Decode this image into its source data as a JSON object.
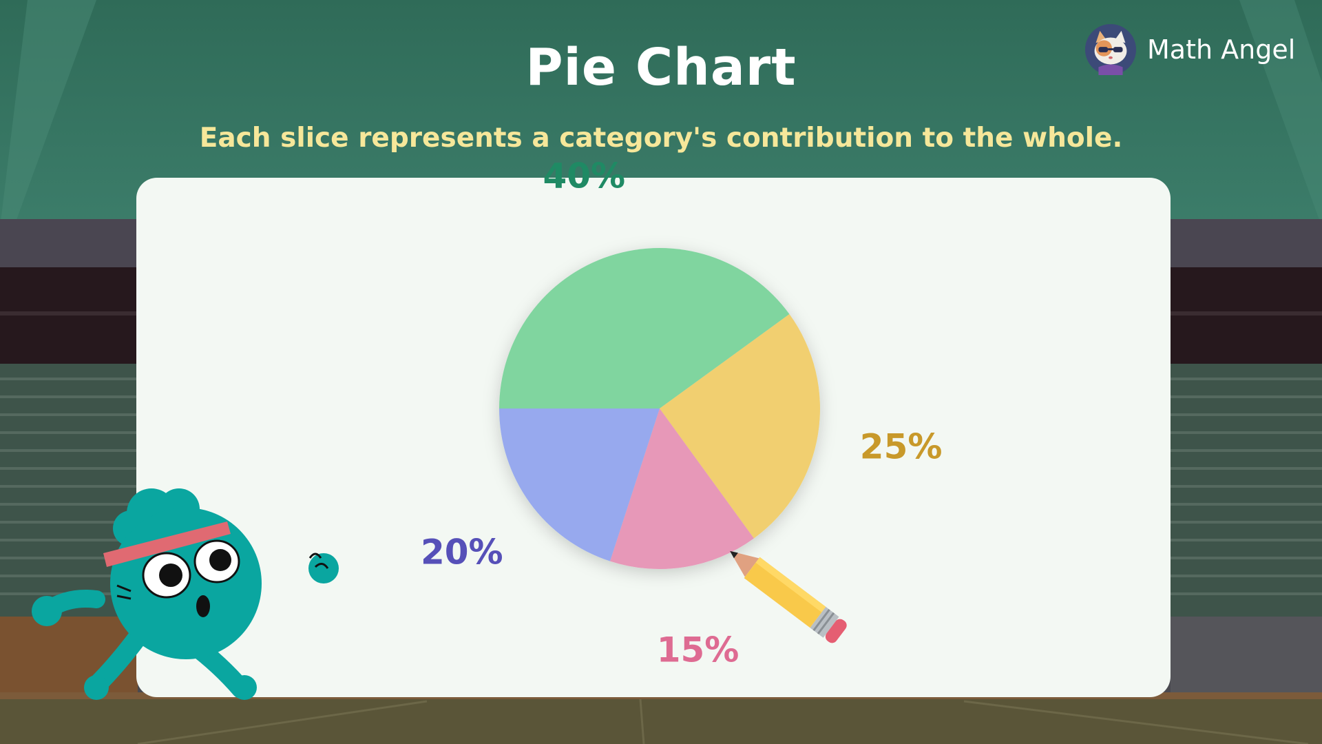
{
  "header": {
    "title": "Pie Chart",
    "subtitle": "Each slice represents a category's contribution to the whole."
  },
  "brand": {
    "name": "Math Angel",
    "logo_icon": "cat-mascot-icon"
  },
  "colors": {
    "subtitle": "#f6e79a",
    "background": "#2f6a58",
    "card": "#f3f8f3"
  },
  "chart_data": {
    "type": "pie",
    "start_angle_deg": 180,
    "direction": "clockwise",
    "slices": [
      {
        "label": "40%",
        "value": 40,
        "color": "#80d59f",
        "label_color": "#1f8a64"
      },
      {
        "label": "25%",
        "value": 25,
        "color": "#f1cf70",
        "label_color": "#c8992a"
      },
      {
        "label": "15%",
        "value": 15,
        "color": "#e798b8",
        "label_color": "#de6b92"
      },
      {
        "label": "20%",
        "value": 20,
        "color": "#97a9ee",
        "label_color": "#5650b8"
      }
    ]
  },
  "decorations": {
    "mascot_icon": "teal-runner-mascot-icon",
    "pencil_icon": "pencil-icon"
  }
}
